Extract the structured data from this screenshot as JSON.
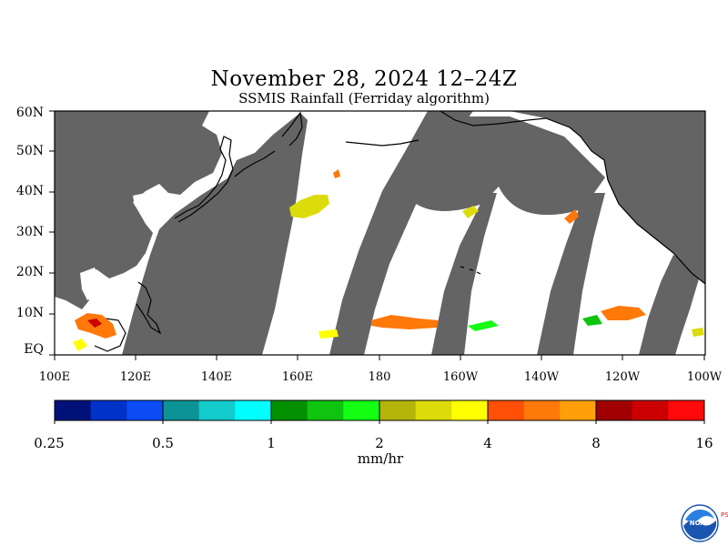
{
  "title": "November 28, 2024 12–24Z",
  "subtitle": "SSMIS Rainfall (Ferriday algorithm)",
  "lat_labels": [
    "60N",
    "50N",
    "40N",
    "30N",
    "20N",
    "10N",
    "EQ"
  ],
  "lon_labels": [
    "100E",
    "120E",
    "140E",
    "160E",
    "180",
    "160W",
    "140W",
    "120W",
    "100W"
  ],
  "colorbar": {
    "colors": [
      "#00127a",
      "#0031c9",
      "#0b4cf5",
      "#0b9396",
      "#14cccc",
      "#00ffff",
      "#029000",
      "#0fc40f",
      "#14ff14",
      "#b4b40a",
      "#dcdc0a",
      "#ffff00",
      "#ff5005",
      "#ff780a",
      "#ffa00a",
      "#a00000",
      "#cc0000",
      "#ff0a0a"
    ],
    "tick_labels": [
      "0.25",
      "0.5",
      "1",
      "2",
      "4",
      "8",
      "16"
    ],
    "units": "mm/hr"
  },
  "colors": {
    "no_data": "#646464",
    "coast": "#000000",
    "background": "#ffffff"
  },
  "logo_text": "NOAA",
  "logo_side_text": "PSL"
}
